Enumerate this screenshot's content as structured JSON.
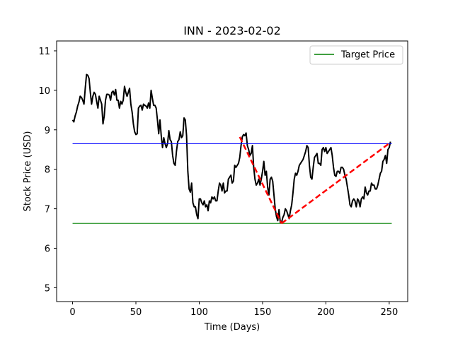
{
  "chart_data": {
    "type": "line",
    "title": "INN - 2023-02-02",
    "xlabel": "Time (Days)",
    "ylabel": "Stock Price (USD)",
    "xlim": [
      -12.6,
      264.6
    ],
    "ylim": [
      4.65,
      11.25
    ],
    "xticks": [
      0,
      50,
      100,
      150,
      200,
      250
    ],
    "yticks": [
      5,
      6,
      7,
      8,
      9,
      10,
      11
    ],
    "grid": false,
    "legend_position": "top-right",
    "legend": [
      {
        "label": "Target Price",
        "color": "#008000"
      }
    ],
    "series": [
      {
        "color": "#000000",
        "points": [
          [
            0,
            9.25
          ],
          [
            1,
            9.2
          ],
          [
            2,
            9.35
          ],
          [
            3,
            9.45
          ],
          [
            4,
            9.6
          ],
          [
            5,
            9.7
          ],
          [
            6,
            9.85
          ],
          [
            7,
            9.82
          ],
          [
            8,
            9.75
          ],
          [
            9,
            9.65
          ],
          [
            10,
            10.05
          ],
          [
            11,
            10.4
          ],
          [
            12,
            10.38
          ],
          [
            13,
            10.3
          ],
          [
            14,
            9.95
          ],
          [
            15,
            9.65
          ],
          [
            16,
            9.85
          ],
          [
            17,
            9.95
          ],
          [
            18,
            9.9
          ],
          [
            19,
            9.72
          ],
          [
            20,
            9.55
          ],
          [
            21,
            9.85
          ],
          [
            22,
            9.75
          ],
          [
            23,
            9.65
          ],
          [
            24,
            9.15
          ],
          [
            25,
            9.35
          ],
          [
            26,
            9.75
          ],
          [
            27,
            9.9
          ],
          [
            28,
            9.9
          ],
          [
            29,
            9.88
          ],
          [
            30,
            9.75
          ],
          [
            31,
            9.95
          ],
          [
            32,
            9.98
          ],
          [
            33,
            9.88
          ],
          [
            34,
            10.02
          ],
          [
            35,
            9.75
          ],
          [
            36,
            9.75
          ],
          [
            37,
            9.55
          ],
          [
            38,
            9.72
          ],
          [
            39,
            9.65
          ],
          [
            40,
            9.75
          ],
          [
            41,
            10.1
          ],
          [
            42,
            9.95
          ],
          [
            43,
            9.85
          ],
          [
            44,
            9.95
          ],
          [
            45,
            10.05
          ],
          [
            46,
            9.65
          ],
          [
            47,
            9.45
          ],
          [
            48,
            9.15
          ],
          [
            49,
            8.95
          ],
          [
            50,
            8.88
          ],
          [
            51,
            8.9
          ],
          [
            52,
            9.55
          ],
          [
            53,
            9.6
          ],
          [
            54,
            9.62
          ],
          [
            55,
            9.5
          ],
          [
            56,
            9.65
          ],
          [
            57,
            9.62
          ],
          [
            58,
            9.6
          ],
          [
            59,
            9.55
          ],
          [
            60,
            9.68
          ],
          [
            61,
            9.55
          ],
          [
            62,
            10.0
          ],
          [
            63,
            9.8
          ],
          [
            64,
            9.62
          ],
          [
            65,
            9.62
          ],
          [
            66,
            9.55
          ],
          [
            67,
            9.25
          ],
          [
            68,
            8.9
          ],
          [
            69,
            9.25
          ],
          [
            70,
            8.85
          ],
          [
            71,
            8.55
          ],
          [
            72,
            8.8
          ],
          [
            73,
            8.65
          ],
          [
            74,
            8.55
          ],
          [
            75,
            8.65
          ],
          [
            76,
            8.98
          ],
          [
            77,
            8.75
          ],
          [
            78,
            8.7
          ],
          [
            79,
            8.35
          ],
          [
            80,
            8.15
          ],
          [
            81,
            8.1
          ],
          [
            82,
            8.45
          ],
          [
            83,
            8.7
          ],
          [
            84,
            8.75
          ],
          [
            85,
            8.95
          ],
          [
            86,
            8.8
          ],
          [
            87,
            8.85
          ],
          [
            88,
            9.3
          ],
          [
            89,
            9.25
          ],
          [
            90,
            8.85
          ],
          [
            91,
            7.95
          ],
          [
            92,
            7.5
          ],
          [
            93,
            7.42
          ],
          [
            94,
            7.65
          ],
          [
            95,
            7.15
          ],
          [
            96,
            7.05
          ],
          [
            97,
            7.05
          ],
          [
            98,
            6.85
          ],
          [
            99,
            6.75
          ],
          [
            100,
            7.25
          ],
          [
            101,
            7.25
          ],
          [
            102,
            7.15
          ],
          [
            103,
            7.1
          ],
          [
            104,
            7.2
          ],
          [
            105,
            7.05
          ],
          [
            106,
            7.1
          ],
          [
            107,
            6.95
          ],
          [
            108,
            7.2
          ],
          [
            109,
            7.15
          ],
          [
            110,
            7.3
          ],
          [
            111,
            7.25
          ],
          [
            112,
            7.3
          ],
          [
            113,
            7.2
          ],
          [
            114,
            7.2
          ],
          [
            115,
            7.45
          ],
          [
            116,
            7.65
          ],
          [
            117,
            7.6
          ],
          [
            118,
            7.45
          ],
          [
            119,
            7.65
          ],
          [
            120,
            7.4
          ],
          [
            121,
            7.45
          ],
          [
            122,
            7.45
          ],
          [
            123,
            7.75
          ],
          [
            124,
            7.8
          ],
          [
            125,
            7.85
          ],
          [
            126,
            7.65
          ],
          [
            127,
            7.7
          ],
          [
            128,
            8.1
          ],
          [
            129,
            8.05
          ],
          [
            130,
            8.1
          ],
          [
            131,
            8.15
          ],
          [
            132,
            8.3
          ],
          [
            133,
            8.6
          ],
          [
            134,
            8.82
          ],
          [
            135,
            8.88
          ],
          [
            136,
            8.85
          ],
          [
            137,
            8.92
          ],
          [
            138,
            8.6
          ],
          [
            139,
            8.5
          ],
          [
            140,
            8.35
          ],
          [
            141,
            8.4
          ],
          [
            142,
            8.6
          ],
          [
            143,
            8.05
          ],
          [
            144,
            7.75
          ],
          [
            145,
            7.6
          ],
          [
            146,
            7.65
          ],
          [
            147,
            7.75
          ],
          [
            148,
            7.6
          ],
          [
            149,
            7.75
          ],
          [
            150,
            7.95
          ],
          [
            151,
            8.2
          ],
          [
            152,
            7.85
          ],
          [
            153,
            7.95
          ],
          [
            154,
            7.55
          ],
          [
            155,
            7.35
          ],
          [
            156,
            7.75
          ],
          [
            157,
            7.8
          ],
          [
            158,
            7.7
          ],
          [
            159,
            7.35
          ],
          [
            160,
            7.0
          ],
          [
            161,
            6.8
          ],
          [
            162,
            6.7
          ],
          [
            163,
            6.98
          ],
          [
            164,
            6.65
          ],
          [
            165,
            6.65
          ],
          [
            166,
            6.78
          ],
          [
            167,
            6.85
          ],
          [
            168,
            7.0
          ],
          [
            169,
            6.95
          ],
          [
            170,
            6.85
          ],
          [
            171,
            6.75
          ],
          [
            172,
            6.95
          ],
          [
            173,
            7.1
          ],
          [
            174,
            7.4
          ],
          [
            175,
            7.75
          ],
          [
            176,
            7.9
          ],
          [
            177,
            7.85
          ],
          [
            178,
            7.95
          ],
          [
            179,
            8.1
          ],
          [
            180,
            8.15
          ],
          [
            181,
            8.2
          ],
          [
            182,
            8.25
          ],
          [
            183,
            8.35
          ],
          [
            184,
            8.45
          ],
          [
            185,
            8.6
          ],
          [
            186,
            8.55
          ],
          [
            187,
            8.1
          ],
          [
            188,
            7.8
          ],
          [
            189,
            7.75
          ],
          [
            190,
            8.05
          ],
          [
            191,
            8.3
          ],
          [
            192,
            8.35
          ],
          [
            193,
            8.4
          ],
          [
            194,
            8.15
          ],
          [
            195,
            8.15
          ],
          [
            196,
            8.1
          ],
          [
            197,
            8.5
          ],
          [
            198,
            8.55
          ],
          [
            199,
            8.45
          ],
          [
            200,
            8.55
          ],
          [
            201,
            8.4
          ],
          [
            202,
            8.45
          ],
          [
            203,
            8.5
          ],
          [
            204,
            8.55
          ],
          [
            205,
            8.35
          ],
          [
            206,
            8.05
          ],
          [
            207,
            7.85
          ],
          [
            208,
            7.82
          ],
          [
            209,
            7.95
          ],
          [
            210,
            7.95
          ],
          [
            211,
            7.9
          ],
          [
            212,
            8.05
          ],
          [
            213,
            8.05
          ],
          [
            214,
            8.0
          ],
          [
            215,
            7.85
          ],
          [
            216,
            7.75
          ],
          [
            217,
            7.55
          ],
          [
            218,
            7.35
          ],
          [
            219,
            7.1
          ],
          [
            220,
            7.05
          ],
          [
            221,
            7.2
          ],
          [
            222,
            7.25
          ],
          [
            223,
            7.2
          ],
          [
            224,
            7.05
          ],
          [
            225,
            7.25
          ],
          [
            226,
            7.2
          ],
          [
            227,
            7.05
          ],
          [
            228,
            7.25
          ],
          [
            229,
            7.3
          ],
          [
            230,
            7.25
          ],
          [
            231,
            7.55
          ],
          [
            232,
            7.4
          ],
          [
            233,
            7.35
          ],
          [
            234,
            7.45
          ],
          [
            235,
            7.45
          ],
          [
            236,
            7.65
          ],
          [
            237,
            7.6
          ],
          [
            238,
            7.6
          ],
          [
            239,
            7.5
          ],
          [
            240,
            7.5
          ],
          [
            241,
            7.6
          ],
          [
            242,
            7.75
          ],
          [
            243,
            7.9
          ],
          [
            244,
            7.95
          ],
          [
            245,
            8.2
          ],
          [
            246,
            8.25
          ],
          [
            247,
            8.35
          ],
          [
            248,
            8.15
          ],
          [
            249,
            8.5
          ],
          [
            250,
            8.55
          ],
          [
            251,
            8.7
          ]
        ]
      }
    ],
    "hlines": [
      {
        "y": 8.65,
        "x_range": [
          0,
          252
        ],
        "color": "#0000ff"
      },
      {
        "y": 6.63,
        "x_range": [
          0,
          252
        ],
        "color": "#008000",
        "label": "Target Price"
      }
    ],
    "dashed_segments": [
      {
        "points": [
          [
            132,
            8.82
          ],
          [
            165,
            6.63
          ]
        ],
        "color": "#ff0000"
      },
      {
        "points": [
          [
            165,
            6.63
          ],
          [
            251,
            8.68
          ]
        ],
        "color": "#ff0000"
      }
    ]
  }
}
